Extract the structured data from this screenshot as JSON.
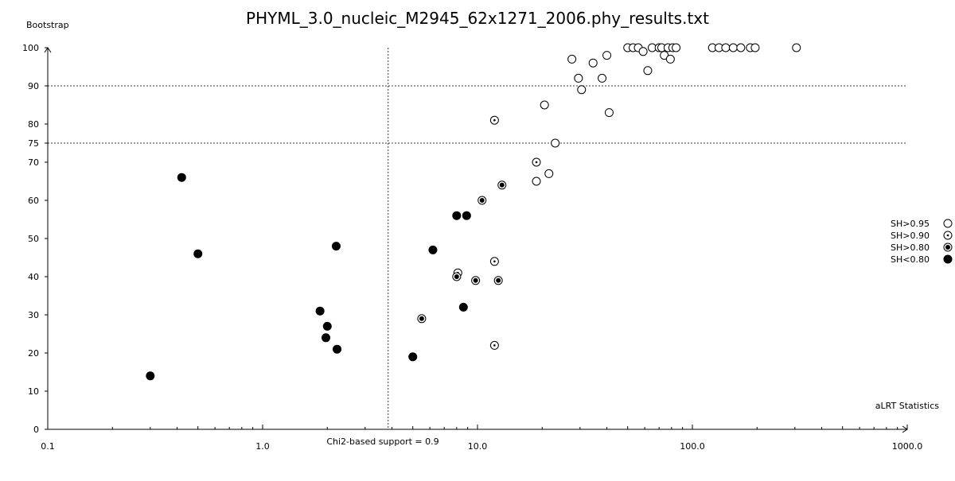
{
  "chart_data": {
    "type": "scatter",
    "title": "PHYML_3.0_nucleic_M2945_62x1271_2006.phy_results.txt",
    "xlabel": "aLRT Statistics",
    "ylabel": "Bootstrap",
    "x_scale": "log",
    "xlim": [
      0.1,
      1000.0
    ],
    "ylim": [
      0,
      100
    ],
    "x_ticks": [
      {
        "value": 0.1,
        "label": "0.1"
      },
      {
        "value": 1.0,
        "label": "1.0"
      },
      {
        "value": 10.0,
        "label": "10.0"
      },
      {
        "value": 100.0,
        "label": "100.0"
      },
      {
        "value": 1000.0,
        "label": "1000.0"
      }
    ],
    "y_ticks": [
      {
        "value": 0,
        "label": "0"
      },
      {
        "value": 10,
        "label": "10"
      },
      {
        "value": 20,
        "label": "20"
      },
      {
        "value": 30,
        "label": "30"
      },
      {
        "value": 40,
        "label": "40"
      },
      {
        "value": 50,
        "label": "50"
      },
      {
        "value": 60,
        "label": "60"
      },
      {
        "value": 70,
        "label": "70"
      },
      {
        "value": 75,
        "label": "75"
      },
      {
        "value": 80,
        "label": "80"
      },
      {
        "value": 90,
        "label": "90"
      },
      {
        "value": 100,
        "label": "100"
      }
    ],
    "reference_lines": {
      "vertical": {
        "x": 3.84,
        "label": "Chi2-based support = 0.9"
      },
      "horizontal": [
        75,
        90
      ]
    },
    "legend_position": "right",
    "series": [
      {
        "name": "SH>0.95",
        "marker": "open",
        "points": [
          [
            27.5,
            97
          ],
          [
            29.5,
            92
          ],
          [
            30.5,
            89
          ],
          [
            34.5,
            96
          ],
          [
            38,
            92
          ],
          [
            40,
            98
          ],
          [
            41,
            83
          ],
          [
            20.5,
            85
          ],
          [
            21.5,
            67
          ],
          [
            18.8,
            65
          ],
          [
            23,
            75
          ],
          [
            50,
            100
          ],
          [
            53,
            100
          ],
          [
            56,
            100
          ],
          [
            59,
            99
          ],
          [
            62,
            94
          ],
          [
            65,
            100
          ],
          [
            70,
            100
          ],
          [
            72,
            100
          ],
          [
            74,
            98
          ],
          [
            77,
            100
          ],
          [
            79,
            97
          ],
          [
            81,
            100
          ],
          [
            84,
            100
          ],
          [
            124,
            100
          ],
          [
            133,
            100
          ],
          [
            143,
            100
          ],
          [
            155,
            100
          ],
          [
            168,
            100
          ],
          [
            186,
            100
          ],
          [
            196,
            100
          ],
          [
            305,
            100
          ]
        ]
      },
      {
        "name": "SH>0.90",
        "marker": "dotted",
        "points": [
          [
            12.0,
            81
          ],
          [
            18.8,
            70
          ],
          [
            12.0,
            44
          ],
          [
            8.1,
            41
          ],
          [
            12.0,
            22
          ]
        ]
      },
      {
        "name": "SH>0.80",
        "marker": "ringed-dot",
        "points": [
          [
            13.0,
            64
          ],
          [
            10.5,
            60
          ],
          [
            8.0,
            40
          ],
          [
            9.8,
            39
          ],
          [
            12.5,
            39
          ],
          [
            5.5,
            29
          ]
        ]
      },
      {
        "name": "SH<0.80",
        "marker": "filled",
        "points": [
          [
            0.42,
            66
          ],
          [
            0.5,
            46
          ],
          [
            2.2,
            48
          ],
          [
            1.85,
            31
          ],
          [
            2.0,
            27
          ],
          [
            1.97,
            24
          ],
          [
            2.22,
            21
          ],
          [
            0.3,
            14
          ],
          [
            8.0,
            56
          ],
          [
            8.9,
            56
          ],
          [
            6.2,
            47
          ],
          [
            8.6,
            32
          ],
          [
            5.0,
            19
          ]
        ]
      }
    ]
  }
}
